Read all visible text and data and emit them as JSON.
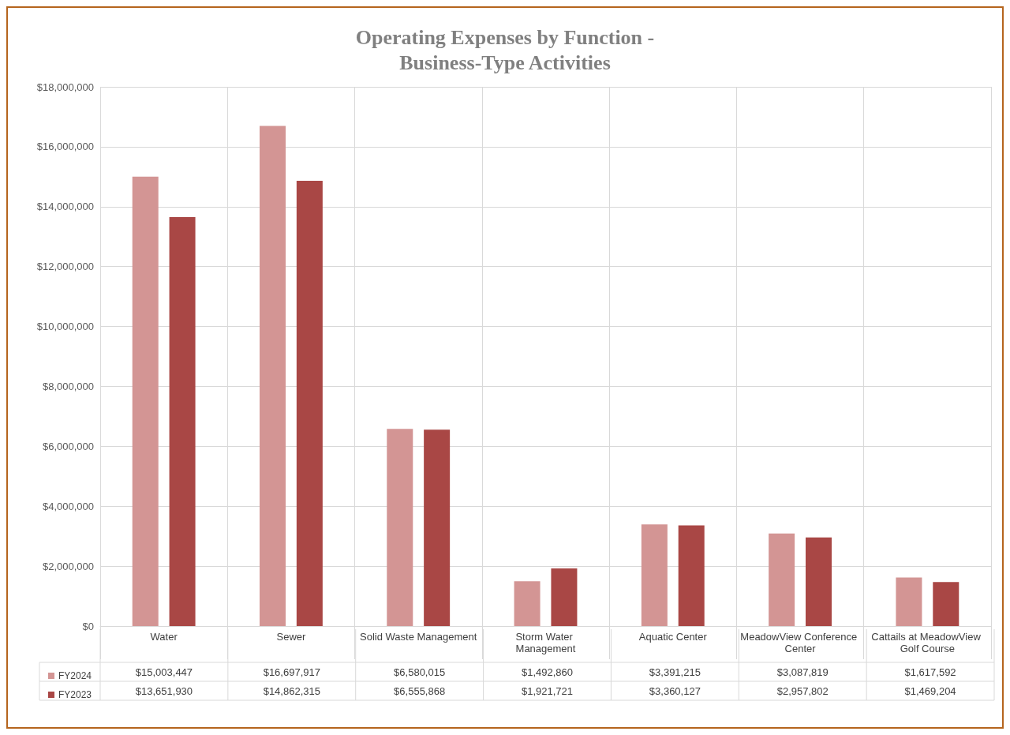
{
  "chart_data": {
    "type": "bar",
    "title": "Operating Expenses by Function -\nBusiness-Type Activities",
    "categories": [
      "Water",
      "Sewer",
      "Solid Waste Management",
      "Storm Water Management",
      "Aquatic Center",
      "MeadowView Conference Center",
      "Cattails at MeadowView Golf Course"
    ],
    "series": [
      {
        "name": "FY2024",
        "color": "#d39594",
        "values": [
          15003447,
          16697917,
          6580015,
          1492860,
          3391215,
          3087819,
          1617592
        ],
        "value_labels": [
          "$15,003,447",
          "$16,697,917",
          "$6,580,015",
          "$1,492,860",
          "$3,391,215",
          "$3,087,819",
          "$1,617,592"
        ]
      },
      {
        "name": "FY2023",
        "color": "#a94745",
        "values": [
          13651930,
          14862315,
          6555868,
          1921721,
          3360127,
          2957802,
          1469204
        ],
        "value_labels": [
          "$13,651,930",
          "$14,862,315",
          "$6,555,868",
          "$1,921,721",
          "$3,360,127",
          "$2,957,802",
          "$1,469,204"
        ]
      }
    ],
    "ylim": [
      0,
      18000000
    ],
    "yticks": [
      {
        "value": 0,
        "label": "$0"
      },
      {
        "value": 2000000,
        "label": "$2,000,000"
      },
      {
        "value": 4000000,
        "label": "$4,000,000"
      },
      {
        "value": 6000000,
        "label": "$6,000,000"
      },
      {
        "value": 8000000,
        "label": "$8,000,000"
      },
      {
        "value": 10000000,
        "label": "$10,000,000"
      },
      {
        "value": 12000000,
        "label": "$12,000,000"
      },
      {
        "value": 14000000,
        "label": "$14,000,000"
      },
      {
        "value": 16000000,
        "label": "$16,000,000"
      },
      {
        "value": 18000000,
        "label": "$18,000,000"
      }
    ],
    "grid": true,
    "legend": "bottom left"
  }
}
